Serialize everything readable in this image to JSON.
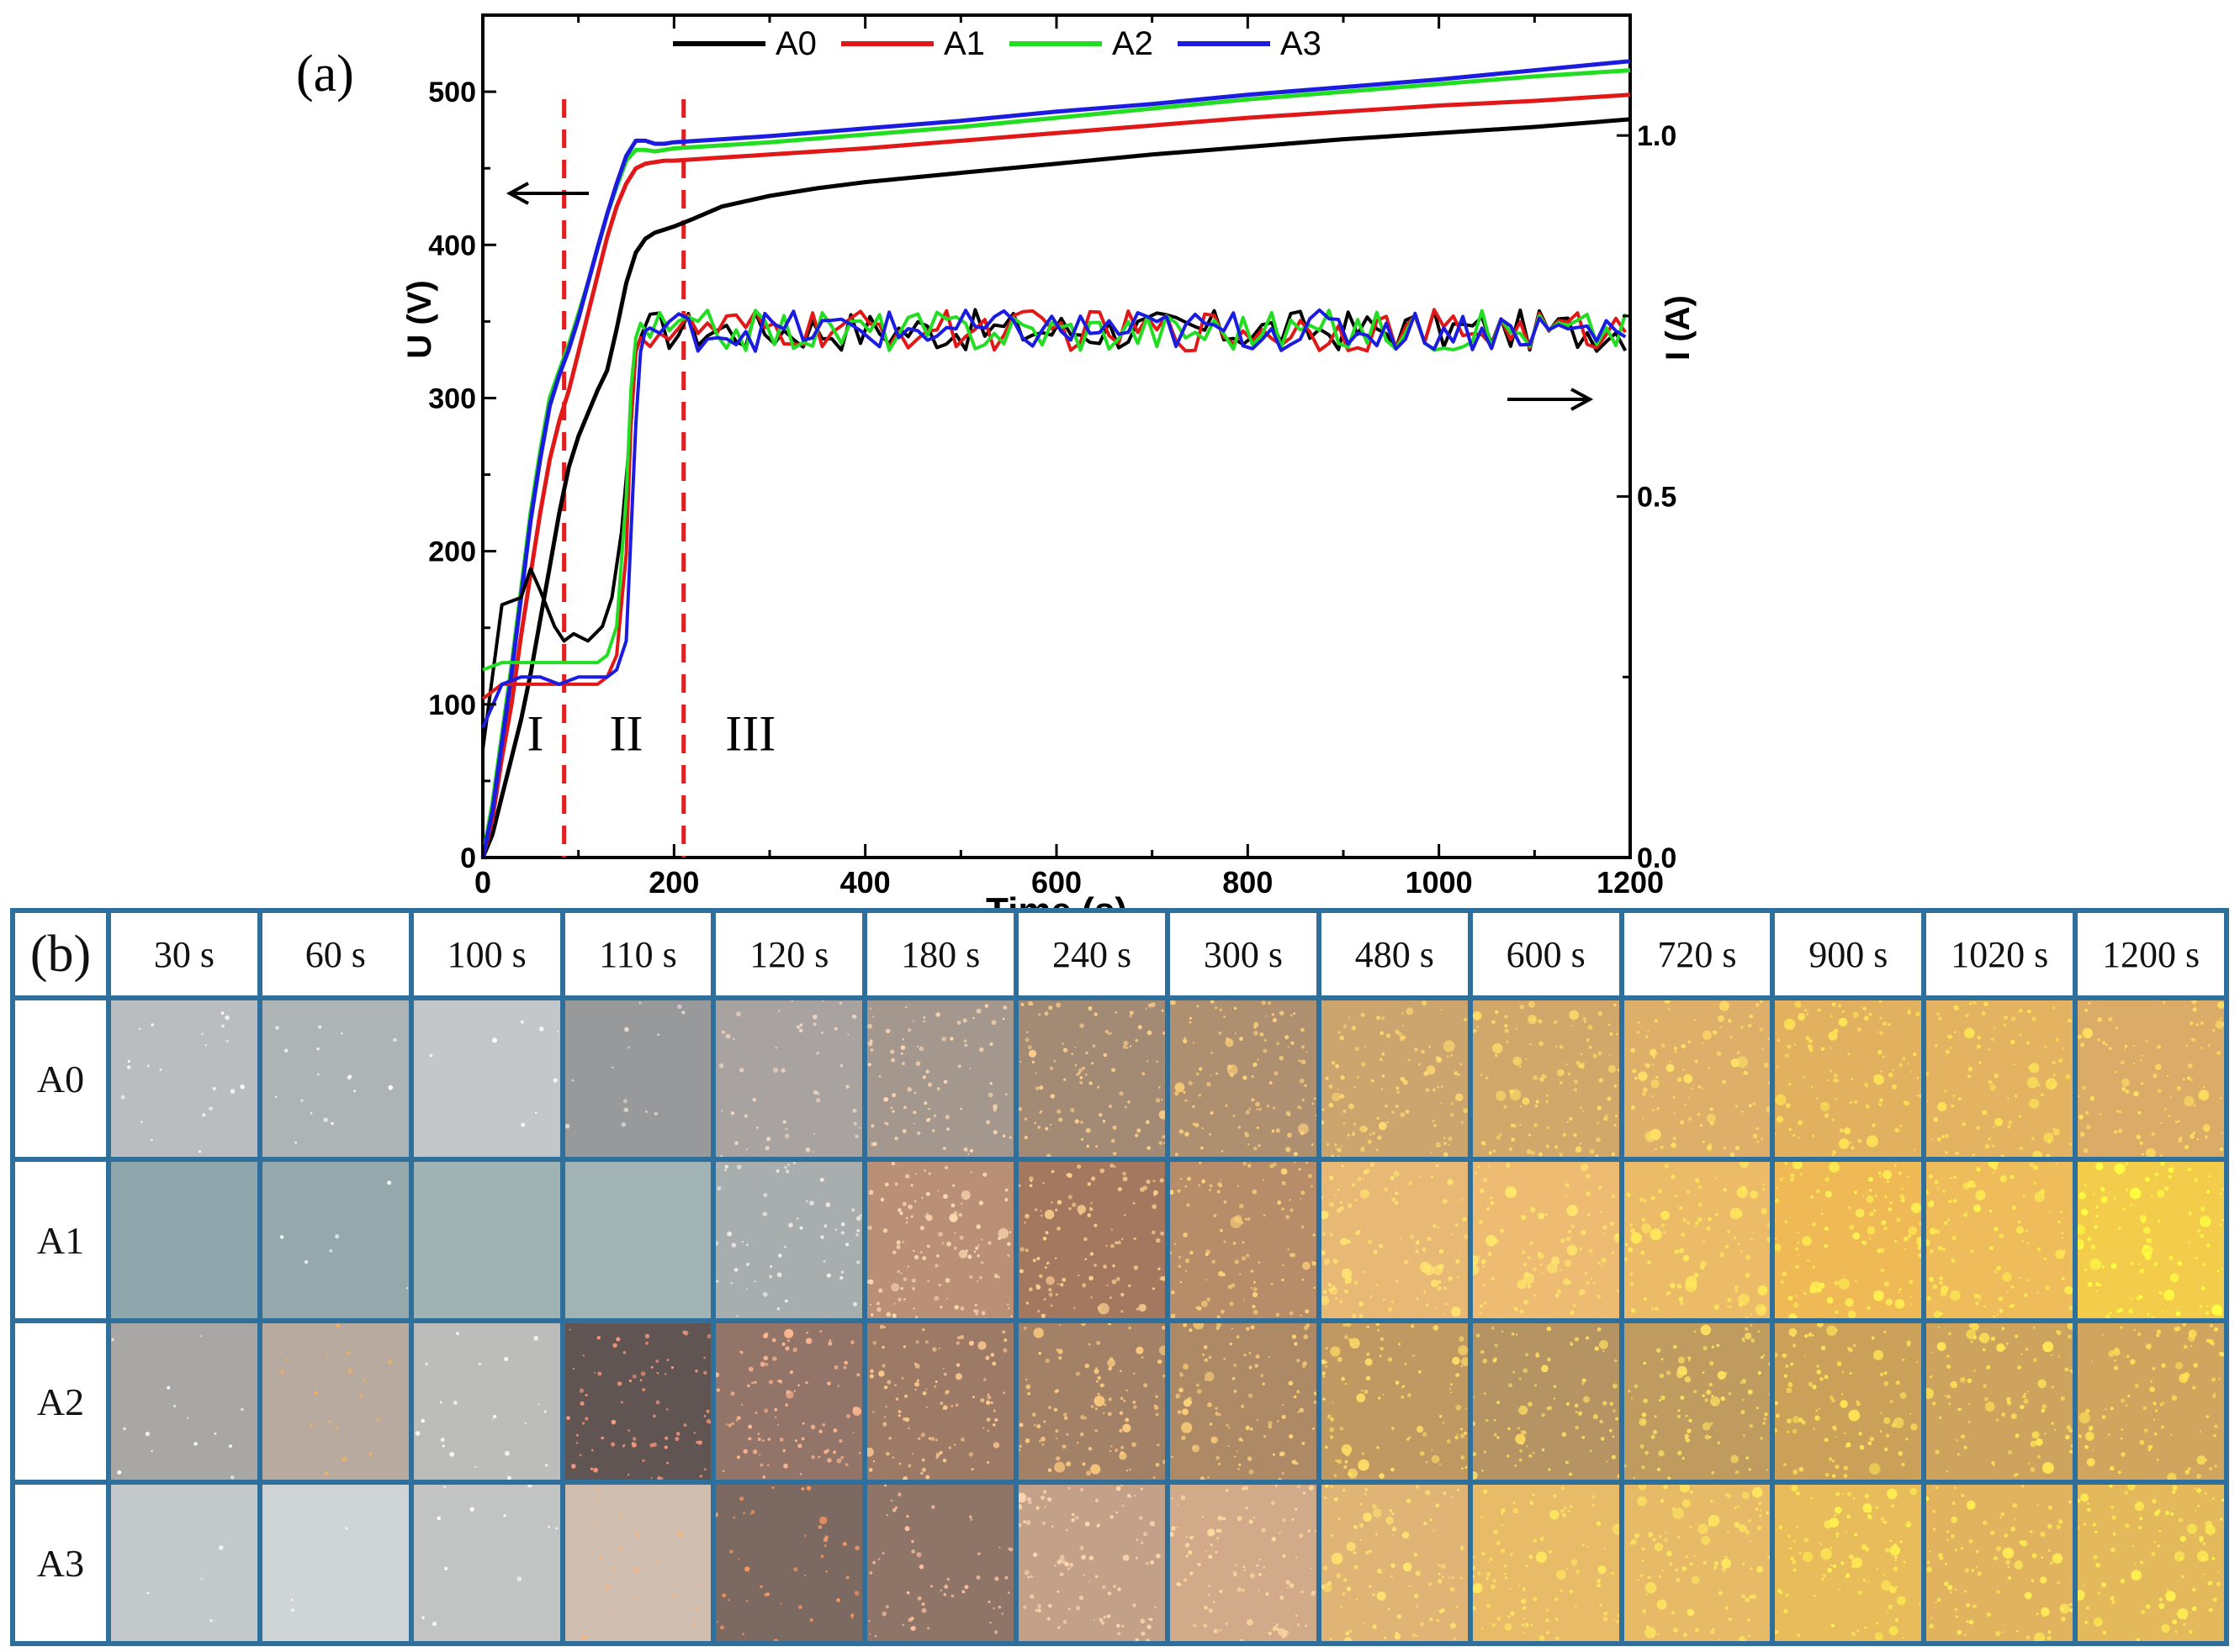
{
  "chart_data": {
    "type": "line",
    "panel_label": "(a)",
    "xlabel": "Time (s)",
    "ylabel_left": "U (V)",
    "ylabel_right": "I (A)",
    "xlim": [
      0,
      1200
    ],
    "ylim_left": [
      0,
      550
    ],
    "ylim_right": [
      0,
      1.1667
    ],
    "x_ticks": [
      0,
      200,
      400,
      600,
      800,
      1000,
      1200
    ],
    "x_tick_labels": [
      "0",
      "200",
      "400",
      "600",
      "800",
      "1000",
      "1200"
    ],
    "y_left_ticks": [
      0,
      100,
      200,
      300,
      400,
      500
    ],
    "y_left_tick_labels": [
      "0",
      "100",
      "200",
      "300",
      "400",
      "500"
    ],
    "y_right_ticks": [
      0,
      0.5,
      1.0
    ],
    "y_right_tick_labels": [
      "0.0",
      "0.5",
      "1.0"
    ],
    "stage_boundaries": [
      85,
      210
    ],
    "stage_labels": [
      {
        "text": "I",
        "x": 55,
        "y": 70
      },
      {
        "text": "II",
        "x": 150,
        "y": 70
      },
      {
        "text": "III",
        "x": 280,
        "y": 70
      }
    ],
    "legend": [
      "A0",
      "A1",
      "A2",
      "A3"
    ],
    "voltage_series": [
      {
        "name": "A0",
        "color": "#000000",
        "x": [
          0,
          10,
          20,
          30,
          40,
          50,
          60,
          70,
          80,
          90,
          100,
          110,
          120,
          130,
          140,
          150,
          160,
          170,
          180,
          190,
          200,
          220,
          250,
          300,
          350,
          400,
          450,
          500,
          600,
          700,
          800,
          900,
          1000,
          1100,
          1200
        ],
        "y": [
          0,
          15,
          40,
          65,
          90,
          120,
          155,
          190,
          225,
          255,
          275,
          290,
          305,
          318,
          345,
          375,
          395,
          404,
          408,
          410,
          412,
          417,
          425,
          432,
          437,
          441,
          444,
          447,
          453,
          459,
          464,
          469,
          473,
          477,
          482
        ]
      },
      {
        "name": "A1",
        "color": "#e01818",
        "x": [
          0,
          10,
          20,
          30,
          40,
          50,
          60,
          70,
          80,
          90,
          100,
          110,
          120,
          130,
          140,
          150,
          160,
          170,
          180,
          190,
          200,
          250,
          300,
          400,
          500,
          600,
          700,
          800,
          900,
          1000,
          1100,
          1200
        ],
        "y": [
          0,
          25,
          65,
          100,
          145,
          185,
          225,
          260,
          285,
          305,
          330,
          355,
          380,
          405,
          425,
          440,
          450,
          453,
          454,
          455,
          455,
          457,
          459,
          463,
          468,
          473,
          478,
          483,
          487,
          491,
          494,
          498
        ]
      },
      {
        "name": "A2",
        "color": "#22dd22",
        "x": [
          0,
          10,
          20,
          30,
          40,
          50,
          60,
          70,
          80,
          90,
          100,
          110,
          120,
          130,
          140,
          150,
          160,
          170,
          180,
          190,
          200,
          250,
          300,
          400,
          500,
          600,
          700,
          800,
          900,
          1000,
          1100,
          1200
        ],
        "y": [
          0,
          35,
          80,
          125,
          175,
          225,
          265,
          300,
          318,
          335,
          355,
          375,
          398,
          420,
          438,
          455,
          462,
          462,
          461,
          462,
          463,
          465,
          467,
          472,
          477,
          483,
          489,
          495,
          500,
          505,
          510,
          514
        ]
      },
      {
        "name": "A3",
        "color": "#1c1ce0",
        "x": [
          0,
          10,
          20,
          30,
          40,
          50,
          60,
          70,
          80,
          90,
          100,
          110,
          120,
          130,
          140,
          150,
          160,
          170,
          180,
          190,
          200,
          250,
          300,
          400,
          500,
          600,
          700,
          800,
          900,
          1000,
          1100,
          1200
        ],
        "y": [
          0,
          30,
          75,
          120,
          170,
          220,
          260,
          295,
          315,
          332,
          352,
          375,
          398,
          420,
          440,
          458,
          468,
          468,
          466,
          466,
          467,
          469,
          471,
          476,
          481,
          487,
          492,
          498,
          503,
          508,
          514,
          520
        ]
      }
    ],
    "current_series": [
      {
        "name": "A0",
        "color": "#000000",
        "x": [
          0,
          20,
          40,
          50,
          60,
          75,
          85,
          95,
          110,
          125,
          135,
          145,
          155,
          160,
          165
        ],
        "y": [
          0.15,
          0.35,
          0.36,
          0.4,
          0.37,
          0.32,
          0.3,
          0.31,
          0.3,
          0.32,
          0.36,
          0.45,
          0.6,
          0.7,
          0.72
        ]
      },
      {
        "name": "A1",
        "color": "#e01818",
        "x": [
          0,
          20,
          40,
          60,
          80,
          100,
          120,
          130,
          140,
          150,
          155,
          160,
          165
        ],
        "y": [
          0.22,
          0.24,
          0.24,
          0.24,
          0.24,
          0.24,
          0.24,
          0.25,
          0.28,
          0.42,
          0.6,
          0.7,
          0.72
        ]
      },
      {
        "name": "A2",
        "color": "#22dd22",
        "x": [
          0,
          20,
          40,
          60,
          80,
          100,
          120,
          130,
          140,
          150,
          155,
          160,
          165
        ],
        "y": [
          0.26,
          0.27,
          0.27,
          0.27,
          0.27,
          0.27,
          0.27,
          0.28,
          0.32,
          0.5,
          0.65,
          0.72,
          0.74
        ]
      },
      {
        "name": "A3",
        "color": "#1c1ce0",
        "x": [
          0,
          20,
          40,
          60,
          80,
          100,
          120,
          130,
          140,
          150,
          155,
          160,
          165,
          170
        ],
        "y": [
          0.18,
          0.24,
          0.25,
          0.25,
          0.24,
          0.25,
          0.25,
          0.25,
          0.26,
          0.3,
          0.45,
          0.6,
          0.7,
          0.73
        ]
      }
    ],
    "current_plateau": {
      "start": 165,
      "end": 1200,
      "mean": 0.73,
      "noise": 0.018
    }
  },
  "panel_b": {
    "label": "(b)",
    "times": [
      "30 s",
      "60 s",
      "100 s",
      "110 s",
      "120 s",
      "180 s",
      "240 s",
      "300 s",
      "480 s",
      "600 s",
      "720 s",
      "900 s",
      "1020 s",
      "1200 s"
    ],
    "samples": [
      "A0",
      "A1",
      "A2",
      "A3"
    ],
    "cell_styles": [
      [
        {
          "bg": "#b9bdc0",
          "spark": "#ffffff",
          "density": 0.15,
          "glow": 0.0
        },
        {
          "bg": "#aeb3b6",
          "spark": "#ffffff",
          "density": 0.12,
          "glow": 0.0
        },
        {
          "bg": "#c3c7c9",
          "spark": "#ffffff",
          "density": 0.06,
          "glow": 0.0
        },
        {
          "bg": "#98999a",
          "spark": "#e8d8d0",
          "density": 0.1,
          "glow": 0.0
        },
        {
          "bg": "#a7a3a0",
          "spark": "#f2d6c2",
          "density": 0.35,
          "glow": 0.05
        },
        {
          "bg": "#a2958d",
          "spark": "#ffd8b0",
          "density": 0.6,
          "glow": 0.1
        },
        {
          "bg": "#9b8574",
          "spark": "#ffcf8a",
          "density": 0.75,
          "glow": 0.2
        },
        {
          "bg": "#a58870",
          "spark": "#ffd27a",
          "density": 0.8,
          "glow": 0.3
        },
        {
          "bg": "#c39a6e",
          "spark": "#ffd870",
          "density": 0.8,
          "glow": 0.45
        },
        {
          "bg": "#c99e6c",
          "spark": "#ffdc66",
          "density": 0.8,
          "glow": 0.5
        },
        {
          "bg": "#d5a46a",
          "spark": "#ffe066",
          "density": 0.75,
          "glow": 0.55
        },
        {
          "bg": "#dba462",
          "spark": "#ffe455",
          "density": 0.75,
          "glow": 0.6
        },
        {
          "bg": "#dca766",
          "spark": "#ffe455",
          "density": 0.7,
          "glow": 0.6
        },
        {
          "bg": "#d3a06a",
          "spark": "#ffe060",
          "density": 0.7,
          "glow": 0.55
        }
      ],
      [
        {
          "bg": "#8ea6ac",
          "spark": "#ffffff",
          "density": 0.0,
          "glow": 0.0
        },
        {
          "bg": "#95a9ad",
          "spark": "#ffffff",
          "density": 0.04,
          "glow": 0.0
        },
        {
          "bg": "#9fb2b4",
          "spark": "#ffffff",
          "density": 0.0,
          "glow": 0.0
        },
        {
          "bg": "#a2b3b5",
          "spark": "#ffffff",
          "density": 0.0,
          "glow": 0.0
        },
        {
          "bg": "#a8aeae",
          "spark": "#f4ede6",
          "density": 0.4,
          "glow": 0.0
        },
        {
          "bg": "#b48a72",
          "spark": "#ffd6b0",
          "density": 0.85,
          "glow": 0.2
        },
        {
          "bg": "#9a705a",
          "spark": "#ffd090",
          "density": 0.8,
          "glow": 0.25
        },
        {
          "bg": "#ad8266",
          "spark": "#ffd27a",
          "density": 0.75,
          "glow": 0.35
        },
        {
          "bg": "#e2ad76",
          "spark": "#ffe470",
          "density": 0.75,
          "glow": 0.6
        },
        {
          "bg": "#e8b074",
          "spark": "#ffe66a",
          "density": 0.7,
          "glow": 0.65
        },
        {
          "bg": "#e6ad6c",
          "spark": "#ffe85a",
          "density": 0.7,
          "glow": 0.65
        },
        {
          "bg": "#eaaa58",
          "spark": "#fff050",
          "density": 0.75,
          "glow": 0.7
        },
        {
          "bg": "#e9ac5e",
          "spark": "#fff050",
          "density": 0.7,
          "glow": 0.7
        },
        {
          "bg": "#efb652",
          "spark": "#ffff40",
          "density": 0.7,
          "glow": 0.85
        }
      ],
      [
        {
          "bg": "#a8a7a5",
          "spark": "#ffffff",
          "density": 0.1,
          "glow": 0.0
        },
        {
          "bg": "#b6aaa2",
          "spark": "#ffb050",
          "density": 0.12,
          "glow": 0.1
        },
        {
          "bg": "#bcbcbb",
          "spark": "#ffffff",
          "density": 0.15,
          "glow": 0.0
        },
        {
          "bg": "#5e5452",
          "spark": "#ff9a80",
          "density": 0.55,
          "glow": 0.05
        },
        {
          "bg": "#907268",
          "spark": "#ffb890",
          "density": 0.7,
          "glow": 0.1
        },
        {
          "bg": "#957563",
          "spark": "#ffc890",
          "density": 0.75,
          "glow": 0.2
        },
        {
          "bg": "#9a7a64",
          "spark": "#ffcc80",
          "density": 0.75,
          "glow": 0.25
        },
        {
          "bg": "#a37f63",
          "spark": "#ffd27a",
          "density": 0.75,
          "glow": 0.35
        },
        {
          "bg": "#b48c62",
          "spark": "#ffdc66",
          "density": 0.7,
          "glow": 0.45
        },
        {
          "bg": "#a98863",
          "spark": "#ffdc60",
          "density": 0.65,
          "glow": 0.4
        },
        {
          "bg": "#b48d60",
          "spark": "#ffe060",
          "density": 0.7,
          "glow": 0.5
        },
        {
          "bg": "#bf925c",
          "spark": "#ffe455",
          "density": 0.7,
          "glow": 0.55
        },
        {
          "bg": "#c29460",
          "spark": "#ffe455",
          "density": 0.7,
          "glow": 0.55
        },
        {
          "bg": "#c79760",
          "spark": "#ffe455",
          "density": 0.65,
          "glow": 0.55
        }
      ],
      [
        {
          "bg": "#c4c9cb",
          "spark": "#ffffff",
          "density": 0.03,
          "glow": 0.0
        },
        {
          "bg": "#cfd4d6",
          "spark": "#ffffff",
          "density": 0.02,
          "glow": 0.0
        },
        {
          "bg": "#c2c4c4",
          "spark": "#ffffff",
          "density": 0.08,
          "glow": 0.0
        },
        {
          "bg": "#cdbfb4",
          "spark": "#ffb070",
          "density": 0.15,
          "glow": 0.15
        },
        {
          "bg": "#7a6a62",
          "spark": "#ff9a60",
          "density": 0.3,
          "glow": 0.05
        },
        {
          "bg": "#8c7468",
          "spark": "#ffc0a0",
          "density": 0.4,
          "glow": 0.05
        },
        {
          "bg": "#c09e86",
          "spark": "#ffd6b0",
          "density": 0.7,
          "glow": 0.15
        },
        {
          "bg": "#cda688",
          "spark": "#ffd8a0",
          "density": 0.7,
          "glow": 0.25
        },
        {
          "bg": "#d9ab76",
          "spark": "#ffe270",
          "density": 0.7,
          "glow": 0.5
        },
        {
          "bg": "#e2b06c",
          "spark": "#ffe860",
          "density": 0.7,
          "glow": 0.6
        },
        {
          "bg": "#e0ae68",
          "spark": "#ffe860",
          "density": 0.7,
          "glow": 0.6
        },
        {
          "bg": "#e2ab5e",
          "spark": "#fff050",
          "density": 0.7,
          "glow": 0.65
        },
        {
          "bg": "#d9a462",
          "spark": "#ffec55",
          "density": 0.7,
          "glow": 0.6
        },
        {
          "bg": "#dca860",
          "spark": "#fff050",
          "density": 0.7,
          "glow": 0.65
        }
      ]
    ]
  }
}
